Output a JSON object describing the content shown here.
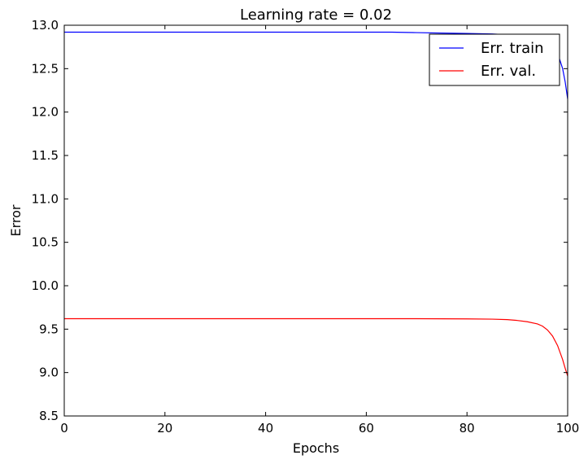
{
  "chart_data": {
    "type": "line",
    "title": "Learning rate = 0.02",
    "xlabel": "Epochs",
    "ylabel": "Error",
    "xlim": [
      0,
      100
    ],
    "ylim": [
      8.5,
      13.0
    ],
    "xticks": [
      0,
      20,
      40,
      60,
      80,
      100
    ],
    "xtick_labels": [
      "0",
      "20",
      "40",
      "60",
      "80",
      "100"
    ],
    "yticks": [
      8.5,
      9.0,
      9.5,
      10.0,
      10.5,
      11.0,
      11.5,
      12.0,
      12.5,
      13.0
    ],
    "ytick_labels": [
      "8.5",
      "9.0",
      "9.5",
      "10.0",
      "10.5",
      "11.0",
      "11.5",
      "12.0",
      "12.5",
      "13.0"
    ],
    "grid": false,
    "legend_position": "top-right",
    "series": [
      {
        "name": "Err. train",
        "color": "#0000ff",
        "x": [
          0,
          10,
          20,
          30,
          40,
          50,
          60,
          65,
          70,
          75,
          80,
          85,
          88,
          90,
          92,
          94,
          95,
          96,
          97,
          98,
          99,
          99.5,
          100
        ],
        "y": [
          12.92,
          12.92,
          12.92,
          12.92,
          12.92,
          12.92,
          12.92,
          12.92,
          12.915,
          12.91,
          12.905,
          12.9,
          12.89,
          12.88,
          12.87,
          12.85,
          12.83,
          12.8,
          12.76,
          12.68,
          12.5,
          12.35,
          12.15
        ]
      },
      {
        "name": "Err. val.",
        "color": "#ff0000",
        "x": [
          0,
          10,
          20,
          30,
          40,
          50,
          60,
          70,
          80,
          85,
          88,
          90,
          92,
          94,
          95,
          96,
          97,
          98,
          99,
          99.5,
          100
        ],
        "y": [
          9.62,
          9.62,
          9.62,
          9.62,
          9.62,
          9.62,
          9.62,
          9.62,
          9.618,
          9.615,
          9.61,
          9.6,
          9.585,
          9.56,
          9.535,
          9.49,
          9.42,
          9.31,
          9.15,
          9.05,
          8.96
        ]
      }
    ]
  }
}
